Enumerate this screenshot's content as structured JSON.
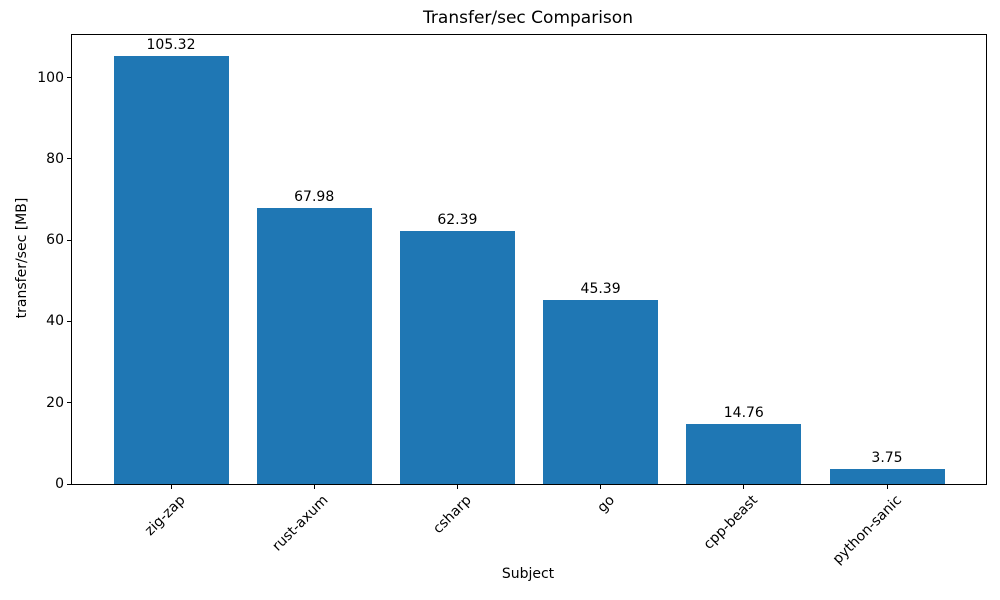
{
  "chart_data": {
    "type": "bar",
    "title": "Transfer/sec Comparison",
    "xlabel": "Subject",
    "ylabel": "transfer/sec [MB]",
    "categories": [
      "zig-zap",
      "rust-axum",
      "csharp",
      "go",
      "cpp-beast",
      "python-sanic"
    ],
    "values": [
      105.32,
      67.98,
      62.39,
      45.39,
      14.76,
      3.75
    ],
    "value_labels": [
      "105.32",
      "67.98",
      "62.39",
      "45.39",
      "14.76",
      "3.75"
    ],
    "yticks": [
      0,
      20,
      40,
      60,
      80,
      100
    ],
    "ylim": [
      0,
      110.5
    ],
    "bar_color": "#1f77b4",
    "text_color": "#000000",
    "grid": false,
    "legend": false,
    "x_tick_rotation_deg": 45
  }
}
